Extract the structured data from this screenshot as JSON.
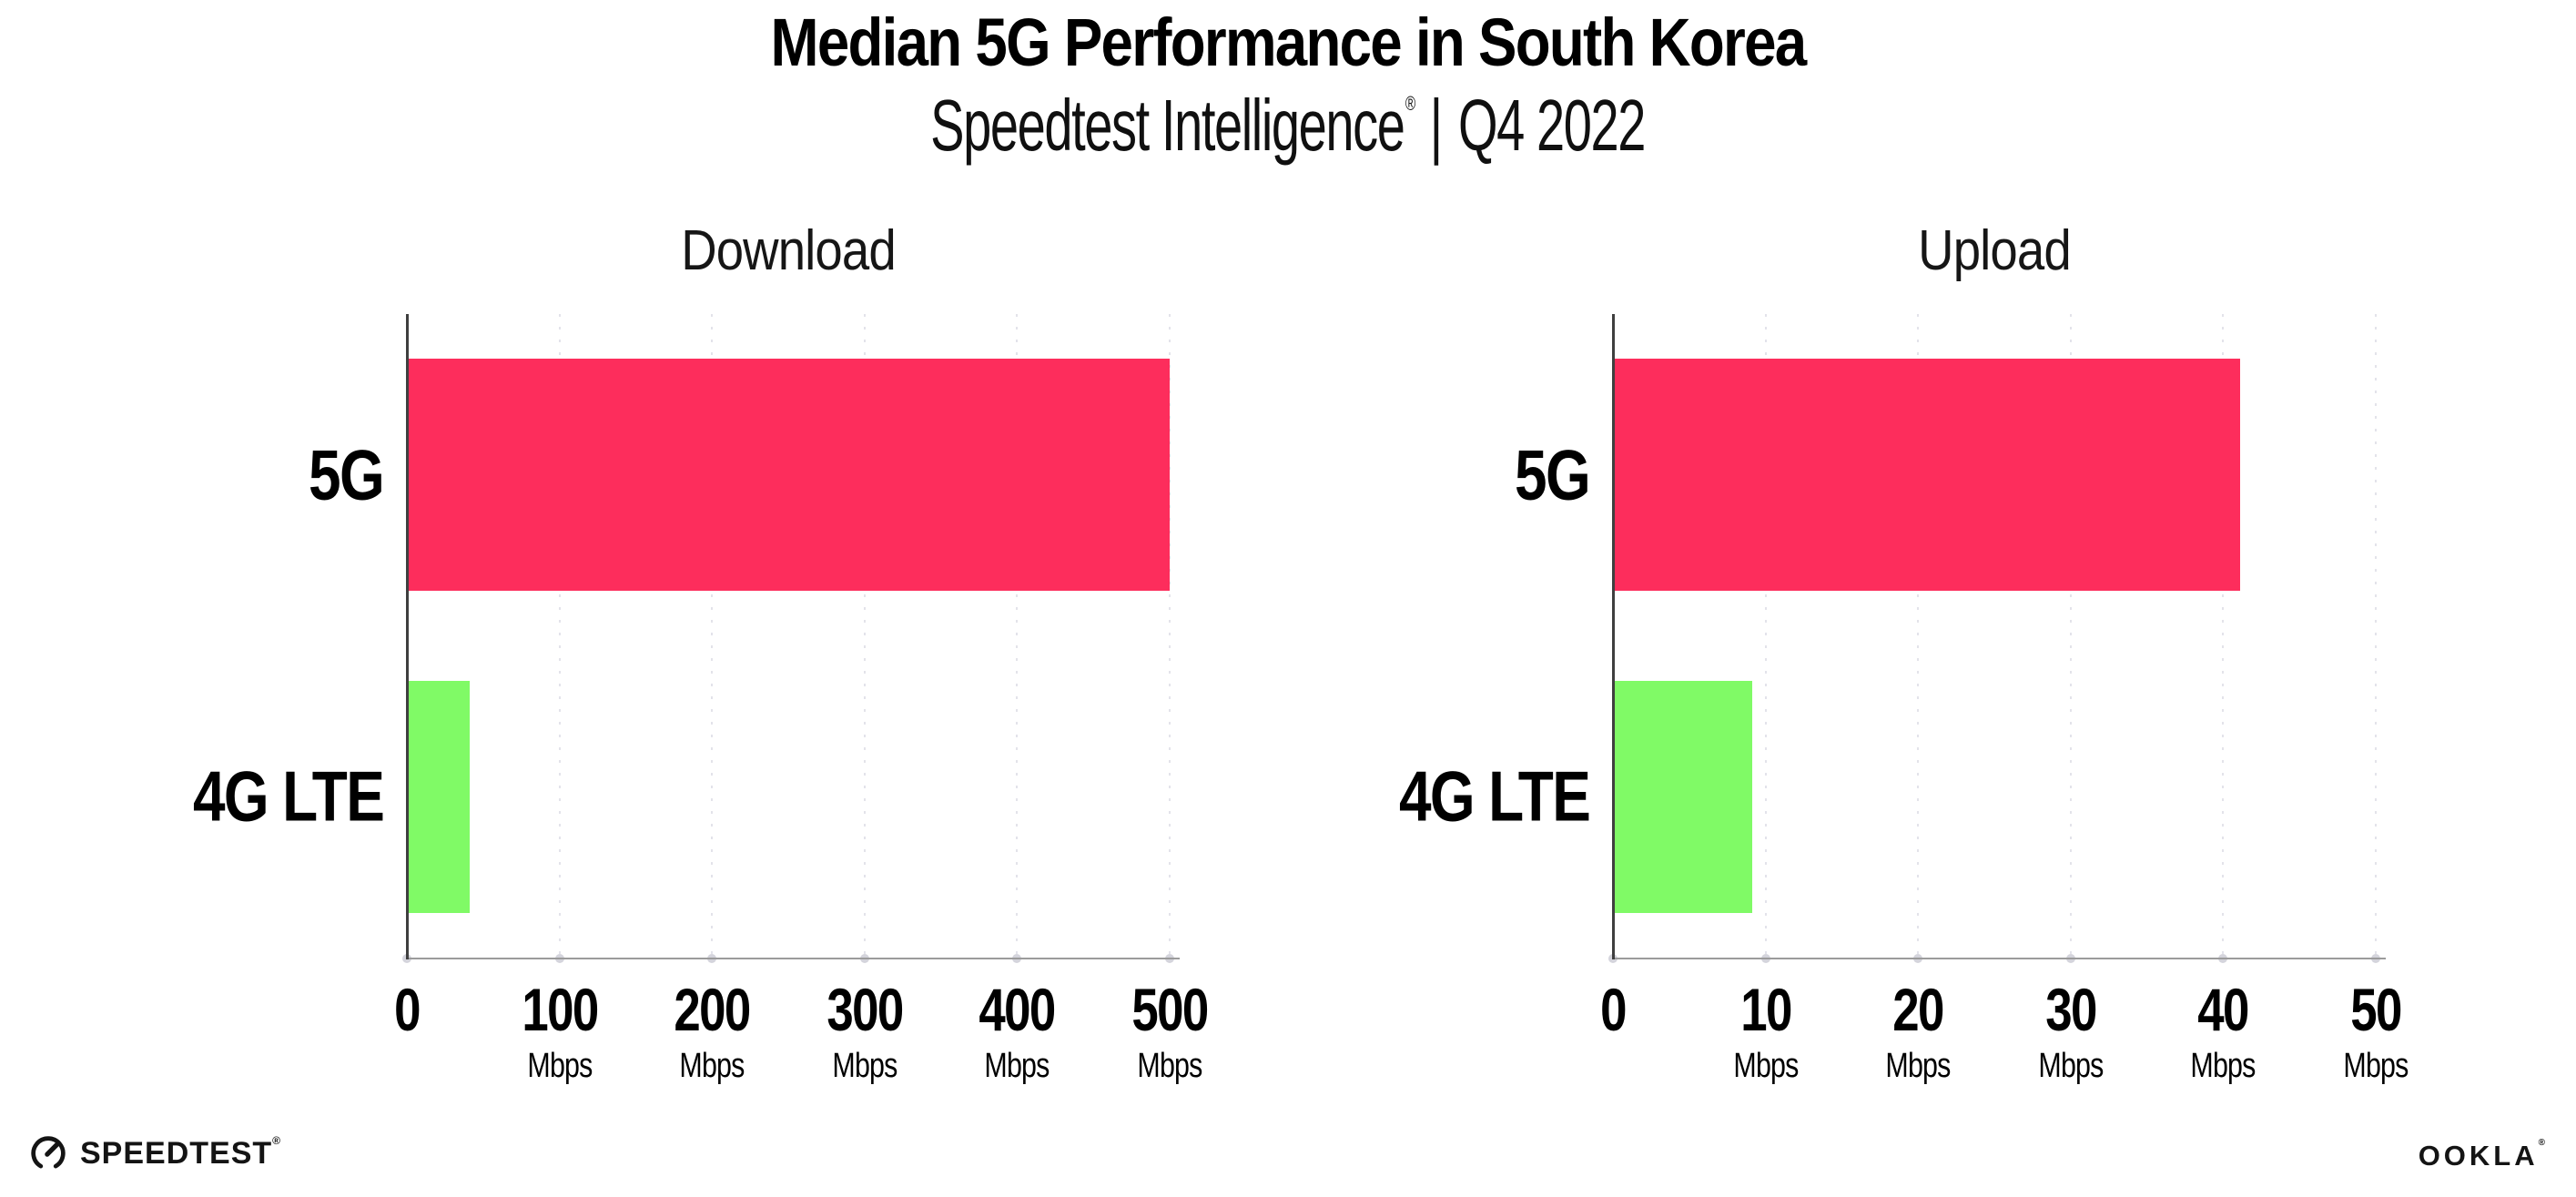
{
  "header": {
    "title": "Median 5G Performance in South Korea",
    "subtitle": {
      "brand": "Speedtest Intelligence",
      "registered_mark": "®",
      "separator": "|",
      "period": "Q4 2022"
    }
  },
  "chart_data": [
    {
      "type": "bar",
      "orientation": "horizontal",
      "title": "Download",
      "categories": [
        "5G",
        "4G LTE"
      ],
      "values": [
        499,
        40
      ],
      "unit": "Mbps",
      "xlim": [
        0,
        500
      ],
      "xticks": [
        0,
        100,
        200,
        300,
        400,
        500
      ],
      "bar_colors": [
        "#fd2d5c",
        "#80fa66"
      ],
      "grid": "vertical-dotted",
      "legend": "none"
    },
    {
      "type": "bar",
      "orientation": "horizontal",
      "title": "Upload",
      "categories": [
        "5G",
        "4G LTE"
      ],
      "values": [
        41,
        9
      ],
      "unit": "Mbps",
      "xlim": [
        0,
        50
      ],
      "xticks": [
        0,
        10,
        20,
        30,
        40,
        50
      ],
      "bar_colors": [
        "#fd2d5c",
        "#80fa66"
      ],
      "grid": "vertical-dotted",
      "legend": "none"
    }
  ],
  "footer": {
    "speedtest_logo_text": "SPEEDTEST",
    "speedtest_mark": "®",
    "ookla_logo_text": "OOKLA",
    "ookla_mark": "®"
  },
  "colors": {
    "bar_5g": "#fd2d5c",
    "bar_4g_lte": "#80fa66",
    "grid_dot": "#e3e3ea",
    "axis": "#3f3f3f",
    "baseline": "#9b9b9b",
    "baseline_dot": "#d4d4dc",
    "text": "#111111",
    "background": "#ffffff"
  }
}
